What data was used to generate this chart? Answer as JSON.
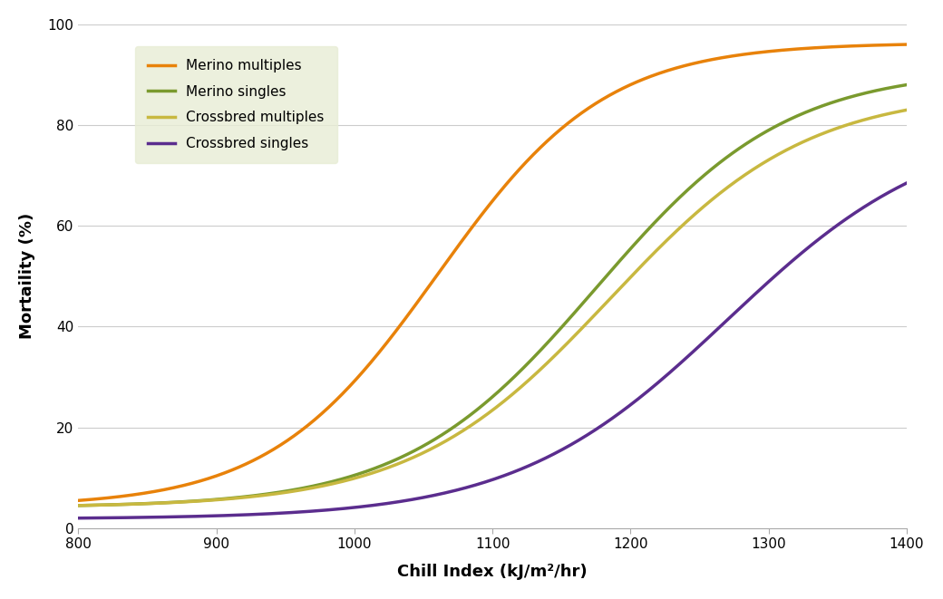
{
  "series": [
    {
      "label": "Merino multiples",
      "color": "#E8820A",
      "sigmoid_L": 96.0,
      "sigmoid_k": 0.0165,
      "sigmoid_x0": 1060
    },
    {
      "label": "Merino singles",
      "color": "#7A9A2E",
      "sigmoid_L": 88.0,
      "sigmoid_k": 0.0145,
      "sigmoid_x0": 1175
    },
    {
      "label": "Crossbred multiples",
      "color": "#C8B840",
      "sigmoid_L": 83.0,
      "sigmoid_k": 0.014,
      "sigmoid_x0": 1185
    },
    {
      "label": "Crossbred singles",
      "color": "#5B2D8E",
      "sigmoid_L": 68.5,
      "sigmoid_k": 0.013,
      "sigmoid_x0": 1270
    }
  ],
  "sigmoid_offsets": [
    5.5,
    4.5,
    4.5,
    2.0
  ],
  "xlabel": "Chill Index (kJ/m²/hr)",
  "ylabel": "Mortaility (%)",
  "xlim": [
    800,
    1400
  ],
  "ylim": [
    0,
    100
  ],
  "xticks": [
    800,
    900,
    1000,
    1100,
    1200,
    1300,
    1400
  ],
  "yticks": [
    0,
    20,
    40,
    60,
    80,
    100
  ],
  "legend_bg": "#E8EDD5",
  "background_color": "#FFFFFF",
  "line_width": 2.5,
  "grid_color": "#CCCCCC"
}
